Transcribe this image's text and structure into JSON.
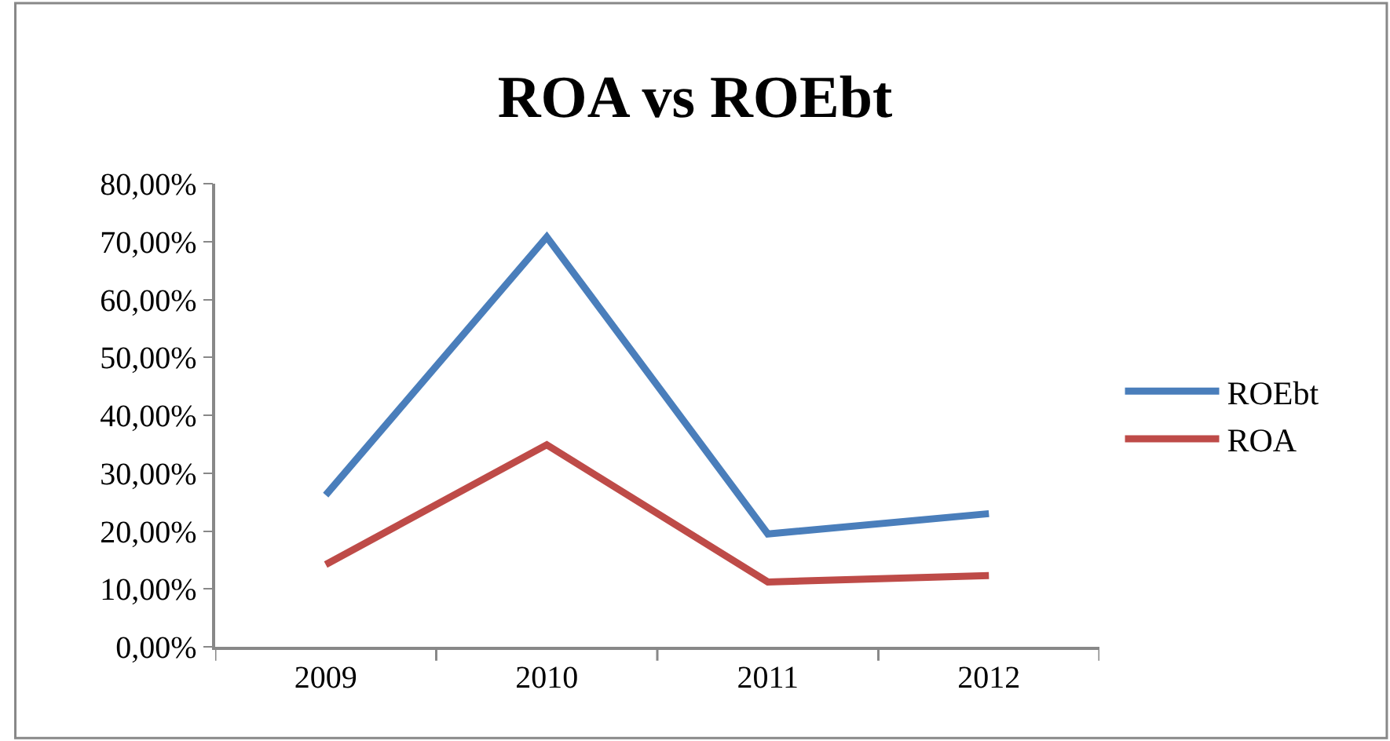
{
  "chart_data": {
    "type": "line",
    "title": "ROA vs ROEbt",
    "categories": [
      "2009",
      "2010",
      "2011",
      "2012"
    ],
    "series": [
      {
        "name": "ROEbt",
        "color": "#4a7ebb",
        "values": [
          26.2,
          70.8,
          19.5,
          23.0
        ]
      },
      {
        "name": "ROA",
        "color": "#be4b48",
        "values": [
          14.2,
          34.9,
          11.2,
          12.3
        ]
      }
    ],
    "ylim": [
      0,
      80
    ],
    "yticks": [
      {
        "value": 0,
        "label": "0,00%"
      },
      {
        "value": 10,
        "label": "10,00%"
      },
      {
        "value": 20,
        "label": "20,00%"
      },
      {
        "value": 30,
        "label": "30,00%"
      },
      {
        "value": 40,
        "label": "40,00%"
      },
      {
        "value": 50,
        "label": "50,00%"
      },
      {
        "value": 60,
        "label": "60,00%"
      },
      {
        "value": 70,
        "label": "70,00%"
      },
      {
        "value": 80,
        "label": "80,00%"
      }
    ],
    "legend": "right",
    "marker": "none",
    "line_style": "solid"
  }
}
